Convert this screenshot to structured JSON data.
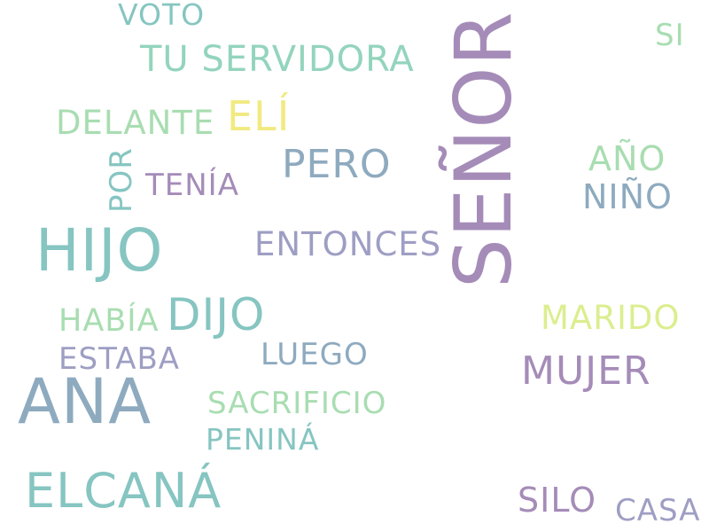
{
  "palette": {
    "purple": "#a58cb8",
    "teal": "#86c5c1",
    "steel": "#8eaabf",
    "mint": "#a8ddb1",
    "yellow": "#f1ea81",
    "lime": "#dbee8f",
    "seafoam": "#93d4bd",
    "lavender": "#9e9ec4"
  },
  "words": [
    {
      "text": "SEÑOR",
      "color": "#a58cb8",
      "orientation": "vertical"
    },
    {
      "text": "HIJO",
      "color": "#86c5c1",
      "orientation": "horizontal"
    },
    {
      "text": "ANA",
      "color": "#8eaabf",
      "orientation": "horizontal"
    },
    {
      "text": "ELCANÁ",
      "color": "#86c5c1",
      "orientation": "horizontal"
    },
    {
      "text": "DIJO",
      "color": "#86c5c1",
      "orientation": "horizontal"
    },
    {
      "text": "MUJER",
      "color": "#a58cb8",
      "orientation": "horizontal"
    },
    {
      "text": "TU SERVIDORA",
      "color": "#93d4bd",
      "orientation": "horizontal"
    },
    {
      "text": "ELÍ",
      "color": "#f1ea81",
      "orientation": "horizontal"
    },
    {
      "text": "PERO",
      "color": "#8eaabf",
      "orientation": "horizontal"
    },
    {
      "text": "ENTONCES",
      "color": "#9e9ec4",
      "orientation": "horizontal"
    },
    {
      "text": "DELANTE",
      "color": "#a8ddb1",
      "orientation": "horizontal"
    },
    {
      "text": "SILO",
      "color": "#a58cb8",
      "orientation": "horizontal"
    },
    {
      "text": "MARIDO",
      "color": "#dbee8f",
      "orientation": "horizontal"
    },
    {
      "text": "NIÑO",
      "color": "#8eaabf",
      "orientation": "horizontal"
    },
    {
      "text": "AÑO",
      "color": "#a8ddb1",
      "orientation": "horizontal"
    },
    {
      "text": "SACRIFICIO",
      "color": "#a8ddb1",
      "orientation": "horizontal"
    },
    {
      "text": "PENINÁ",
      "color": "#86c5c1",
      "orientation": "horizontal"
    },
    {
      "text": "LUEGO",
      "color": "#8eaabf",
      "orientation": "horizontal"
    },
    {
      "text": "ESTABA",
      "color": "#9e9ec4",
      "orientation": "horizontal"
    },
    {
      "text": "HABÍA",
      "color": "#a8ddb1",
      "orientation": "horizontal"
    },
    {
      "text": "TENÍA",
      "color": "#a58cb8",
      "orientation": "horizontal"
    },
    {
      "text": "POR",
      "color": "#86c5c1",
      "orientation": "vertical"
    },
    {
      "text": "VOTO",
      "color": "#86c5c1",
      "orientation": "horizontal"
    },
    {
      "text": "SI",
      "color": "#a8ddb1",
      "orientation": "horizontal"
    },
    {
      "text": "CASA",
      "color": "#9e9ec4",
      "orientation": "horizontal"
    }
  ]
}
